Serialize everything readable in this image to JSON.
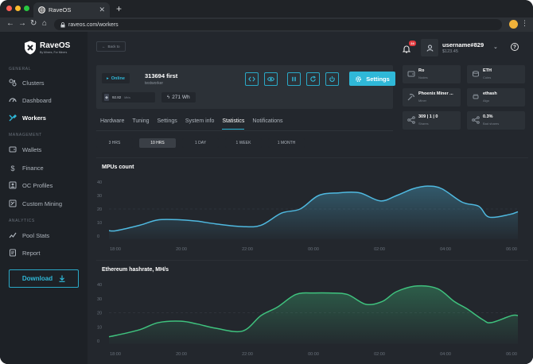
{
  "browser": {
    "tab_title": "RaveOS",
    "url": "raveos.com/workers",
    "colors": {
      "close": "#ff5f57",
      "min": "#febc2e",
      "max": "#28c840"
    }
  },
  "sidebar": {
    "logo_name": "RaveOS",
    "logo_sub": "By Miners, For Miners",
    "sections": {
      "general": "GENERAL",
      "management": "MANAGEMENT",
      "analytics": "ANALYTICS"
    },
    "items": [
      {
        "label": "Clusters",
        "icon": "cluster-icon"
      },
      {
        "label": "Dashboard",
        "icon": "dashboard-icon"
      },
      {
        "label": "Workers",
        "icon": "tools-icon"
      },
      {
        "label": "Wallets",
        "icon": "wallet-icon"
      },
      {
        "label": "Finance",
        "icon": "dollar-icon"
      },
      {
        "label": "OC Profiles",
        "icon": "profile-icon"
      },
      {
        "label": "Custom Mining",
        "icon": "mining-icon"
      },
      {
        "label": "Pool Stats",
        "icon": "line-chart-icon"
      },
      {
        "label": "Report",
        "icon": "report-icon"
      }
    ],
    "download_label": "Download"
  },
  "header": {
    "back_label": "Back to",
    "notifications_count": "24",
    "username": "username#829",
    "balance": "$123.45"
  },
  "worker": {
    "status": "Online",
    "name": "313694 first",
    "group": "testworker",
    "hashrate": "92.82",
    "hashrate_unit": "Mh/s",
    "power": "271 Wh",
    "settings_label": "Settings"
  },
  "info": [
    {
      "value": "Ro",
      "label": "Nodes",
      "icon": "wallet-icon"
    },
    {
      "value": "ETH",
      "label": "Coins",
      "icon": "coins-icon"
    },
    {
      "value": "Phoenix Miner ...",
      "label": "Miner",
      "icon": "pickaxe-icon"
    },
    {
      "value": "ethash",
      "label": "Algo",
      "icon": "chip-icon"
    },
    {
      "value": "309 | 1 | 0",
      "label": "Shares",
      "icon": "share-icon"
    },
    {
      "value": "0.3%",
      "label": "Bad shares",
      "icon": "share-icon"
    }
  ],
  "tabs": [
    "Hardware",
    "Tuning",
    "Settings",
    "System info",
    "Statistics",
    "Notifications"
  ],
  "active_tab": "Statistics",
  "periods": [
    "3 HRS",
    "10 HRS",
    "1 DAY",
    "1 WEEK",
    "1 MONTH"
  ],
  "active_period": "10 HRS",
  "chart_data": [
    {
      "type": "area",
      "title": "MPUs count",
      "color": "#4fb9e0",
      "ylim": [
        0,
        40
      ],
      "yticks": [
        0,
        10,
        20,
        30,
        40
      ],
      "xticks": [
        "18:00",
        "20:00",
        "22:00",
        "00:00",
        "02:00",
        "04:00",
        "06:00"
      ],
      "x": [
        0,
        0.35,
        1.5,
        2.4,
        3.5,
        4.3,
        5.2,
        6.5,
        7.4,
        8.4,
        9.3,
        10.2,
        11.2,
        12.2,
        13.2,
        14.0,
        14.8,
        15.5,
        16.2,
        17.2,
        18.0,
        18.5,
        19.5,
        19.9
      ],
      "values": [
        4,
        4,
        8,
        12,
        12,
        11,
        9,
        7,
        8,
        17,
        20,
        30,
        32,
        32,
        26,
        30,
        35,
        37,
        35,
        25,
        22,
        14,
        16,
        18
      ],
      "grid_dashed_at": 20
    },
    {
      "type": "area",
      "title": "Ethereum hashrate, MH/s",
      "color": "#3fc27e",
      "ylim": [
        0,
        40
      ],
      "yticks": [
        0,
        10,
        20,
        30,
        40
      ],
      "xticks": [
        "18:00",
        "20:00",
        "22:00",
        "00:00",
        "02:00",
        "04:00",
        "06:00"
      ],
      "x": [
        0,
        0.35,
        1.5,
        2.4,
        3.5,
        4.3,
        5.2,
        6.5,
        7.4,
        8.2,
        9.1,
        10.0,
        10.7,
        11.6,
        12.5,
        13.3,
        14.0,
        15.0,
        16.0,
        16.8,
        17.4,
        18.2,
        18.6,
        19.6,
        19.9
      ],
      "values": [
        3,
        4,
        8,
        13,
        14,
        12,
        9,
        7,
        18,
        24,
        33,
        34,
        34,
        33,
        26,
        28,
        35,
        39,
        37,
        28,
        23,
        15,
        13,
        18,
        18
      ],
      "grid_dashed_at": 20
    }
  ]
}
